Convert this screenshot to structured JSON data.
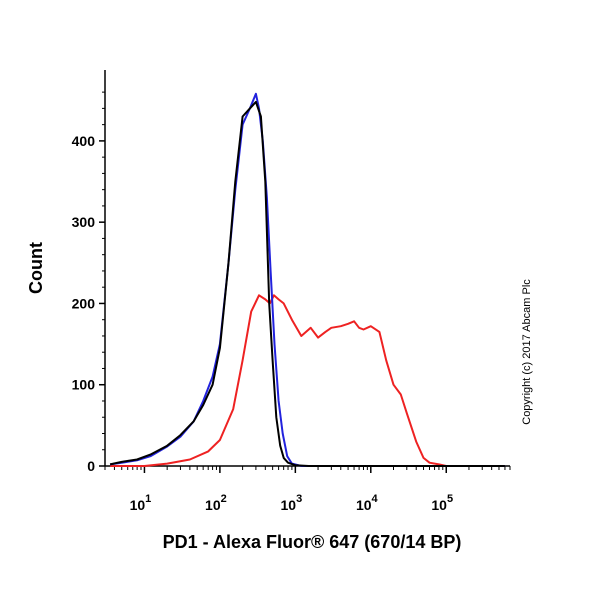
{
  "chart_data": {
    "type": "line",
    "xlabel": "PD1 - Alexa Fluor® 647 (670/14 BP)",
    "ylabel": "Count",
    "x_scale": "log",
    "xlim": [
      3,
      700000
    ],
    "ylim": [
      0,
      470
    ],
    "yticks": [
      0,
      100,
      200,
      300,
      400
    ],
    "xticks": [
      {
        "value": 10,
        "label": "10",
        "exp": "1"
      },
      {
        "value": 100,
        "label": "10",
        "exp": "2"
      },
      {
        "value": 1000,
        "label": "10",
        "exp": "3"
      },
      {
        "value": 10000,
        "label": "10",
        "exp": "4"
      },
      {
        "value": 100000,
        "label": "10",
        "exp": "5"
      }
    ],
    "grid": false,
    "series": [
      {
        "color": "#000000",
        "x": [
          3.5,
          5,
          8,
          12,
          20,
          30,
          45,
          60,
          80,
          100,
          130,
          160,
          200,
          250,
          300,
          350,
          400,
          450,
          500,
          560,
          630,
          700,
          800,
          1000,
          1500,
          3000,
          10000,
          100000,
          600000
        ],
        "y": [
          2,
          5,
          8,
          14,
          25,
          38,
          55,
          75,
          100,
          145,
          250,
          350,
          430,
          440,
          448,
          430,
          350,
          200,
          130,
          60,
          25,
          10,
          4,
          1,
          0,
          0,
          0,
          0,
          0
        ]
      },
      {
        "color": "#2222dd",
        "x": [
          3.5,
          5,
          8,
          12,
          20,
          30,
          45,
          60,
          80,
          100,
          130,
          160,
          200,
          250,
          300,
          330,
          370,
          420,
          470,
          530,
          600,
          680,
          780,
          900,
          1200,
          2000,
          10000,
          100000,
          600000
        ],
        "y": [
          2,
          4,
          7,
          12,
          24,
          36,
          55,
          80,
          110,
          150,
          250,
          340,
          420,
          440,
          458,
          440,
          400,
          330,
          240,
          150,
          80,
          40,
          12,
          3,
          0,
          0,
          0,
          0,
          0
        ]
      },
      {
        "color": "#ee2222",
        "x": [
          3.5,
          10,
          20,
          40,
          70,
          100,
          150,
          200,
          260,
          330,
          400,
          460,
          520,
          600,
          700,
          900,
          1200,
          1600,
          2000,
          2500,
          3000,
          4000,
          5000,
          6000,
          7000,
          8000,
          10000,
          13000,
          16000,
          20000,
          25000,
          30000,
          40000,
          50000,
          60000,
          80000,
          100000,
          200000,
          600000
        ],
        "y": [
          0,
          0,
          3,
          8,
          18,
          32,
          70,
          130,
          190,
          210,
          205,
          200,
          210,
          205,
          200,
          180,
          160,
          170,
          158,
          165,
          170,
          172,
          175,
          178,
          170,
          168,
          172,
          165,
          130,
          100,
          88,
          65,
          30,
          10,
          4,
          2,
          0,
          0,
          0
        ]
      }
    ],
    "annotation": "Copyright (c) 2017 Abcam Plc"
  }
}
